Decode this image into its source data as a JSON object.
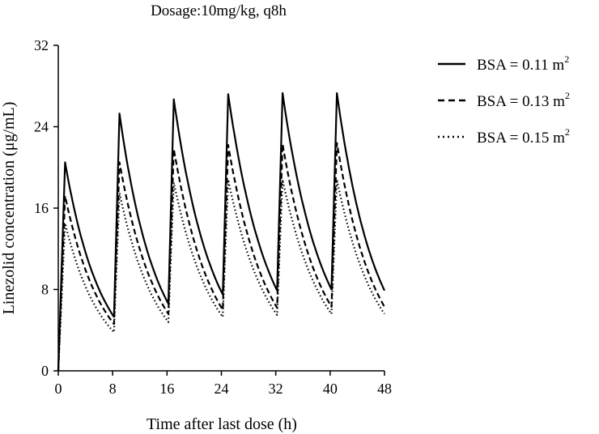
{
  "chart_data": {
    "type": "line",
    "title": "Dosage:10mg/kg, q8h",
    "xlabel": "Time after last dose (h)",
    "ylabel": "Linezolid concentration (μg/mL)",
    "xlim": [
      0,
      48
    ],
    "ylim": [
      0,
      32
    ],
    "xticks": [
      "0",
      "8",
      "16",
      "24",
      "32",
      "40",
      "48"
    ],
    "yticks": [
      "0",
      "8",
      "16",
      "24",
      "32"
    ],
    "grid": false,
    "legend_position": "right",
    "series": [
      {
        "name": "BSA = 0.11 m",
        "sup": "2",
        "style": "solid",
        "x": [
          0,
          1,
          8.2,
          9,
          16.2,
          17,
          24.2,
          25,
          32.2,
          33,
          40.2,
          41,
          48
        ],
        "y": [
          0,
          20.5,
          5.3,
          25.3,
          6.6,
          26.7,
          7.5,
          27.2,
          7.9,
          27.3,
          8.0,
          27.3,
          7.9
        ]
      },
      {
        "name": "BSA = 0.13 m",
        "sup": "2",
        "style": "dashed",
        "x": [
          0,
          1,
          8.2,
          9,
          16.2,
          17,
          24.2,
          25,
          32.2,
          33,
          40.2,
          41,
          48
        ],
        "y": [
          0,
          17.2,
          4.6,
          20.5,
          5.6,
          21.8,
          6.0,
          22.2,
          6.2,
          22.3,
          6.3,
          22.4,
          6.3
        ]
      },
      {
        "name": "BSA = 0.15 m",
        "sup": "2",
        "style": "dotted",
        "x": [
          0,
          1,
          8.2,
          9,
          16.2,
          17,
          24.2,
          25,
          32.2,
          33,
          40.2,
          41,
          48
        ],
        "y": [
          0,
          14.5,
          3.8,
          17.5,
          4.8,
          18.5,
          5.3,
          18.8,
          5.5,
          18.8,
          5.6,
          18.8,
          5.6
        ]
      }
    ]
  }
}
